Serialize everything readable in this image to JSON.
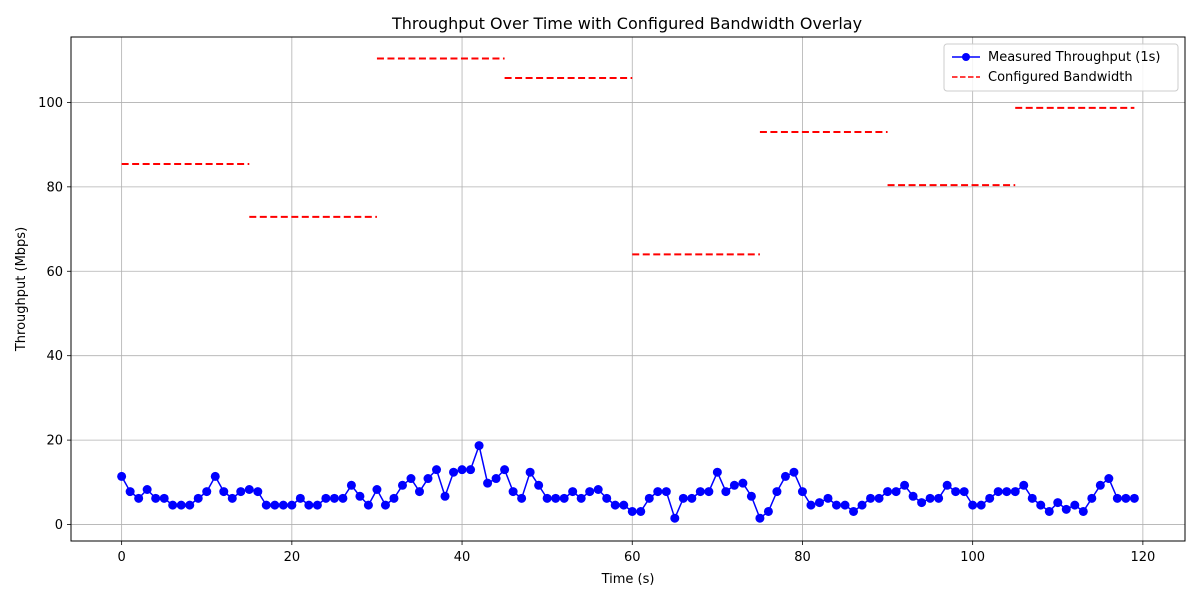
{
  "chart_data": {
    "type": "line",
    "title": "Throughput Over Time with Configured Bandwidth Overlay",
    "xlabel": "Time (s)",
    "ylabel": "Throughput (Mbps)",
    "xlim": [
      -5.95,
      124.95
    ],
    "ylim": [
      -3.9,
      115.5
    ],
    "xticks": [
      0,
      20,
      40,
      60,
      80,
      100,
      120
    ],
    "yticks": [
      0,
      20,
      40,
      60,
      80,
      100
    ],
    "grid": true,
    "legend_position": "top-right",
    "series": [
      {
        "name": "Measured Throughput (1s)",
        "style": "line-markers",
        "color": "#0000ff",
        "x": [
          0,
          1,
          2,
          3,
          4,
          5,
          6,
          7,
          8,
          9,
          10,
          11,
          12,
          13,
          14,
          15,
          16,
          17,
          18,
          19,
          20,
          21,
          22,
          23,
          24,
          25,
          26,
          27,
          28,
          29,
          30,
          31,
          32,
          33,
          34,
          35,
          36,
          37,
          38,
          39,
          40,
          41,
          42,
          43,
          44,
          45,
          46,
          47,
          48,
          49,
          50,
          51,
          52,
          53,
          54,
          55,
          56,
          57,
          58,
          59,
          60,
          61,
          62,
          63,
          64,
          65,
          66,
          67,
          68,
          69,
          70,
          71,
          72,
          73,
          74,
          75,
          76,
          77,
          78,
          79,
          80,
          81,
          82,
          83,
          84,
          85,
          86,
          87,
          88,
          89,
          90,
          91,
          92,
          93,
          94,
          95,
          96,
          97,
          98,
          99,
          100,
          101,
          102,
          103,
          104,
          105,
          106,
          107,
          108,
          109,
          110,
          111,
          112,
          113,
          114,
          115,
          116,
          117,
          118,
          119
        ],
        "y": [
          11.4,
          7.8,
          6.2,
          8.3,
          6.2,
          6.2,
          4.6,
          4.6,
          4.6,
          6.2,
          7.8,
          11.4,
          7.8,
          6.2,
          7.8,
          8.3,
          7.8,
          4.6,
          4.6,
          4.6,
          4.6,
          6.2,
          4.6,
          4.6,
          6.2,
          6.2,
          6.2,
          9.3,
          6.7,
          4.6,
          8.3,
          4.6,
          6.2,
          9.3,
          10.9,
          7.8,
          10.9,
          13.0,
          6.7,
          12.4,
          13.0,
          13.0,
          18.7,
          9.8,
          10.9,
          13.0,
          7.8,
          6.2,
          12.4,
          9.3,
          6.2,
          6.2,
          6.2,
          7.8,
          6.2,
          7.8,
          8.3,
          6.2,
          4.6,
          4.6,
          3.1,
          3.1,
          6.2,
          7.8,
          7.8,
          1.5,
          6.2,
          6.2,
          7.8,
          7.8,
          12.4,
          7.8,
          9.3,
          9.8,
          6.7,
          1.5,
          3.1,
          7.8,
          11.4,
          12.4,
          7.8,
          4.6,
          5.2,
          6.2,
          4.6,
          4.6,
          3.1,
          4.6,
          6.2,
          6.2,
          7.8,
          7.8,
          9.3,
          6.7,
          5.2,
          6.2,
          6.2,
          9.3,
          7.8,
          7.8,
          4.6,
          4.6,
          6.2,
          7.8,
          7.8,
          7.8,
          9.3,
          6.2,
          4.6,
          3.1,
          5.2,
          3.6,
          4.6,
          3.1,
          6.2,
          9.3,
          10.9,
          6.2,
          6.2,
          6.2
        ]
      },
      {
        "name": "Configured Bandwidth",
        "style": "dashed-steps",
        "color": "#ff0000",
        "segments": [
          {
            "x_start": 0,
            "x_end": 15,
            "value": 85.4
          },
          {
            "x_start": 15,
            "x_end": 30,
            "value": 72.9
          },
          {
            "x_start": 30,
            "x_end": 45,
            "value": 110.4
          },
          {
            "x_start": 45,
            "x_end": 60,
            "value": 105.8
          },
          {
            "x_start": 60,
            "x_end": 75,
            "value": 64.0
          },
          {
            "x_start": 75,
            "x_end": 90,
            "value": 93.0
          },
          {
            "x_start": 90,
            "x_end": 105,
            "value": 80.4
          },
          {
            "x_start": 105,
            "x_end": 119,
            "value": 98.7
          }
        ]
      }
    ]
  }
}
